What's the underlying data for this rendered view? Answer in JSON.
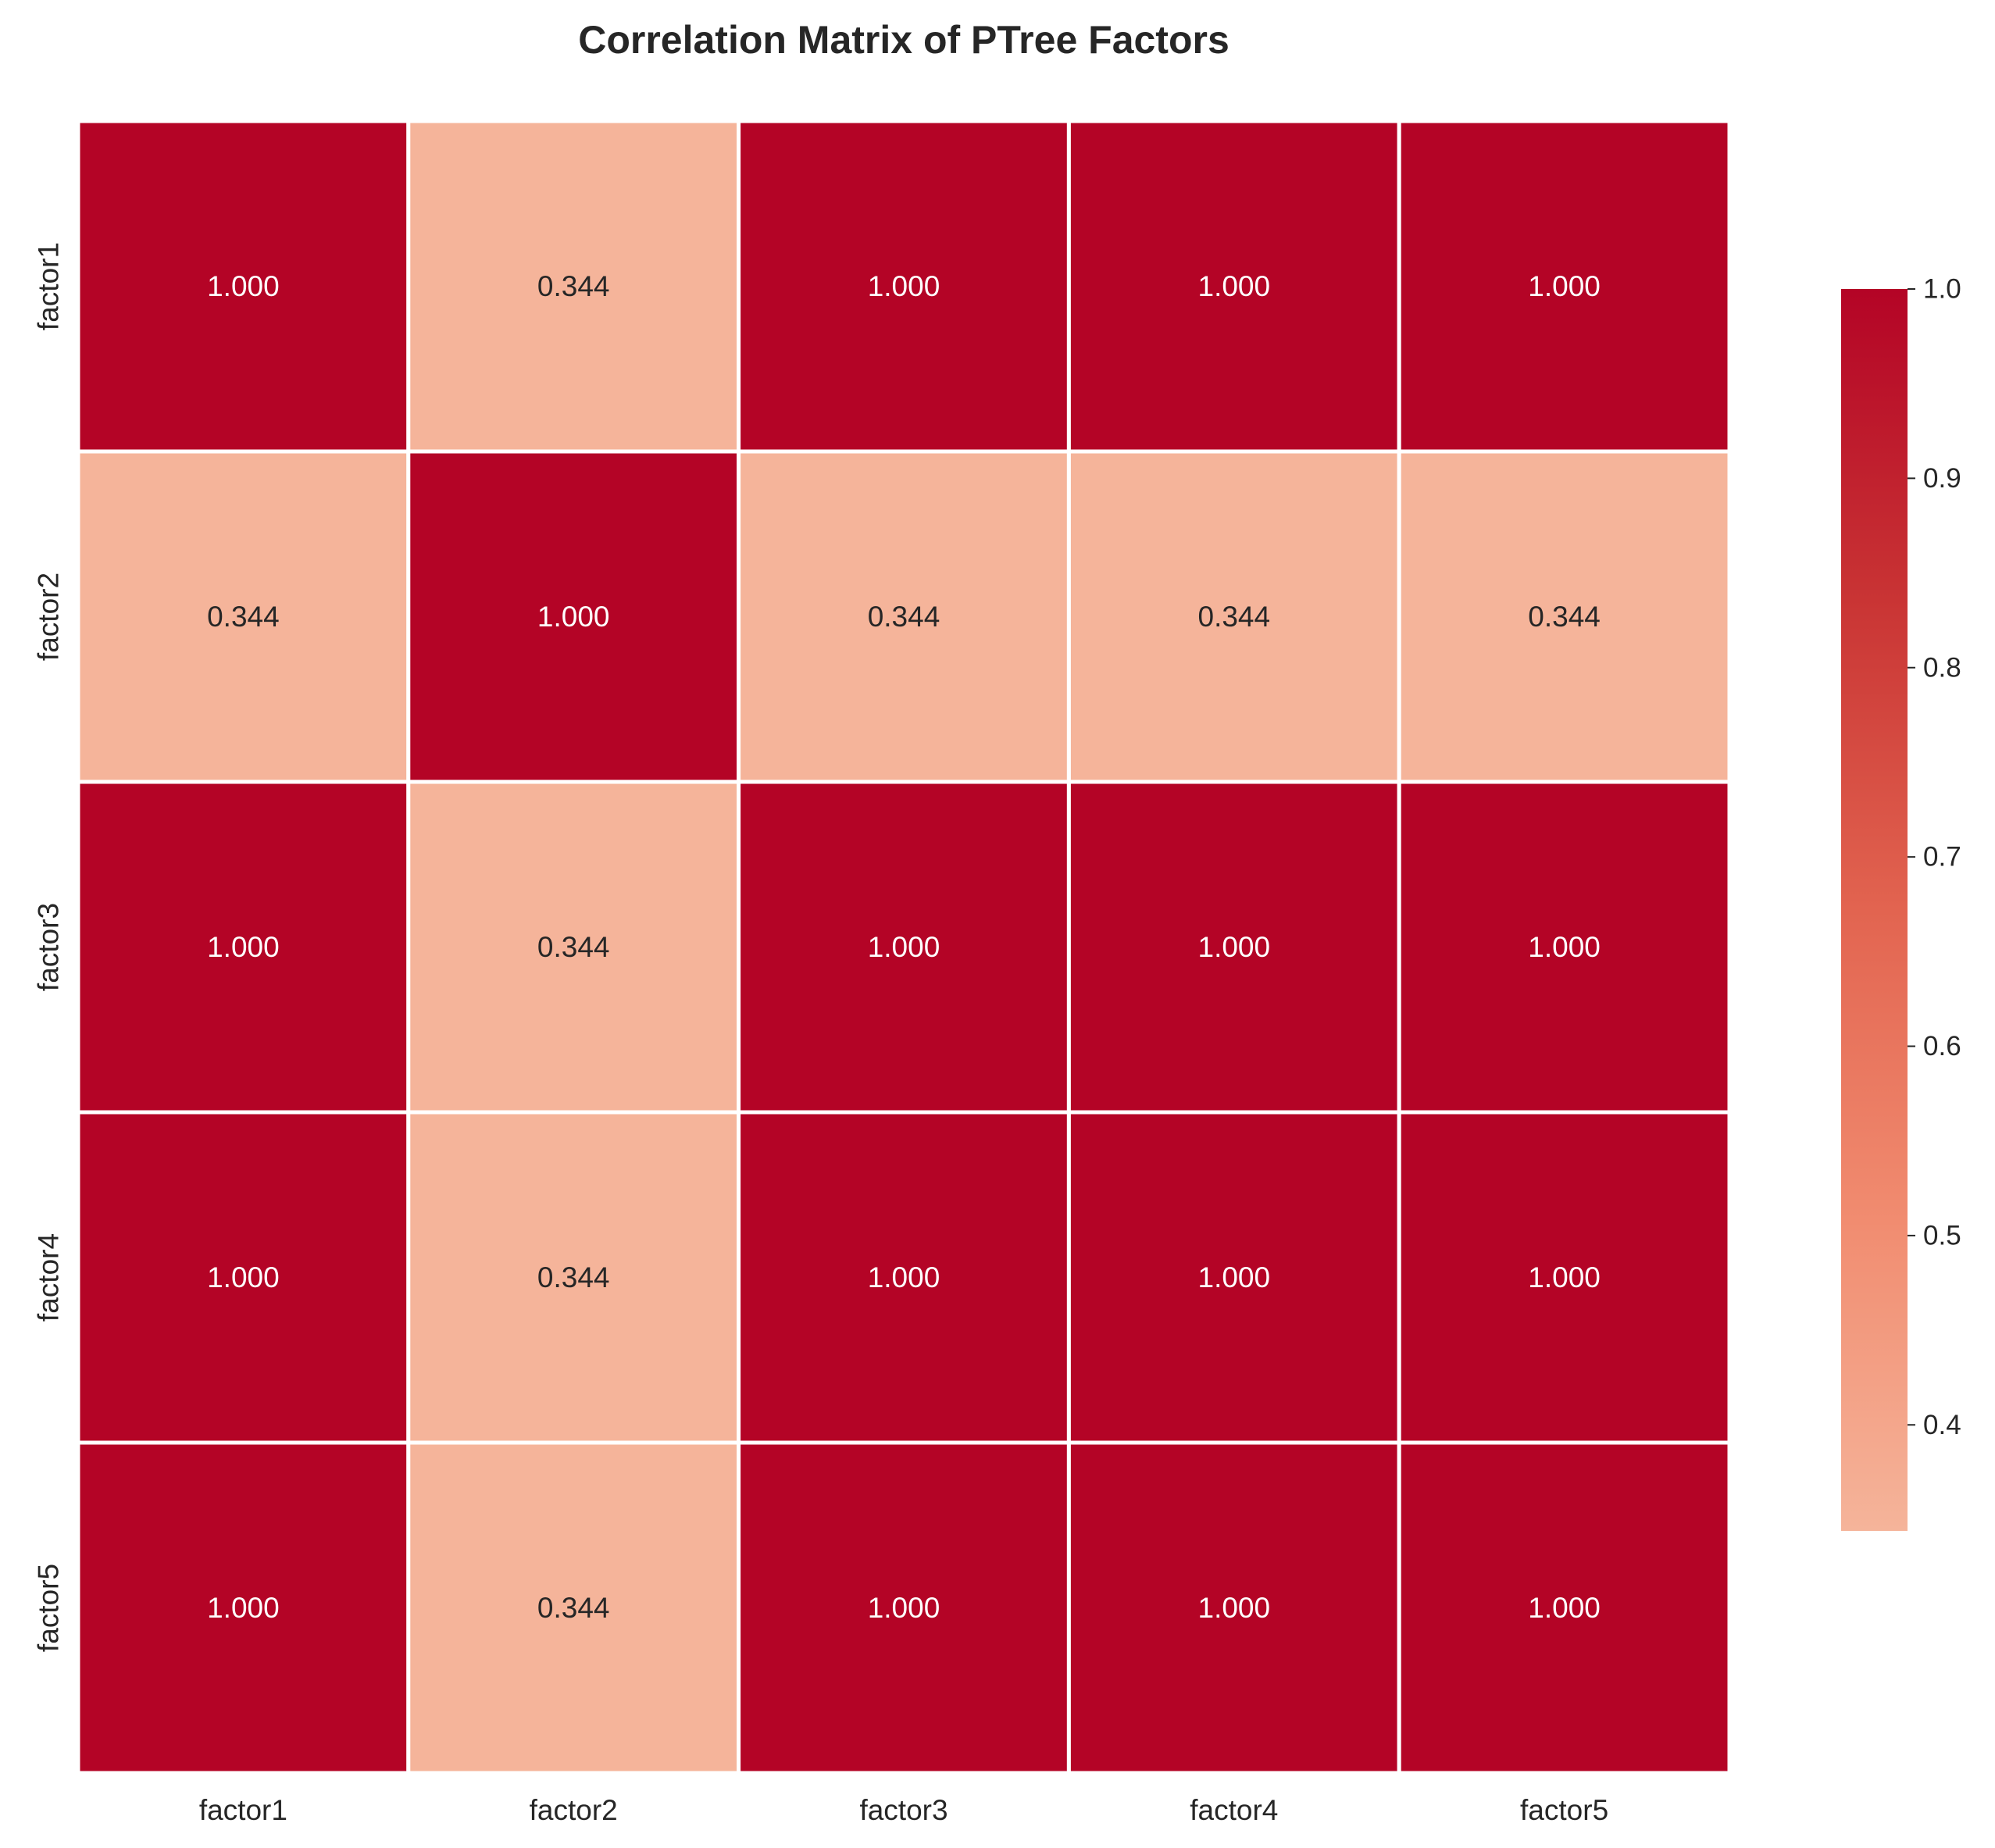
{
  "chart_data": {
    "type": "heatmap",
    "title": "Correlation Matrix of PTree Factors",
    "xlabel": "",
    "ylabel": "",
    "x_categories": [
      "factor1",
      "factor2",
      "factor3",
      "factor4",
      "factor5"
    ],
    "y_categories": [
      "factor1",
      "factor2",
      "factor3",
      "factor4",
      "factor5"
    ],
    "values": [
      [
        1.0,
        0.344,
        1.0,
        1.0,
        1.0
      ],
      [
        0.344,
        1.0,
        0.344,
        0.344,
        0.344
      ],
      [
        1.0,
        0.344,
        1.0,
        1.0,
        1.0
      ],
      [
        1.0,
        0.344,
        1.0,
        1.0,
        1.0
      ],
      [
        1.0,
        0.344,
        1.0,
        1.0,
        1.0
      ]
    ],
    "cell_labels": [
      [
        "1.000",
        "0.344",
        "1.000",
        "1.000",
        "1.000"
      ],
      [
        "0.344",
        "1.000",
        "0.344",
        "0.344",
        "0.344"
      ],
      [
        "1.000",
        "0.344",
        "1.000",
        "1.000",
        "1.000"
      ],
      [
        "1.000",
        "0.344",
        "1.000",
        "1.000",
        "1.000"
      ],
      [
        "1.000",
        "0.344",
        "1.000",
        "1.000",
        "1.000"
      ]
    ],
    "colorbar": {
      "range": [
        0.344,
        1.0
      ],
      "ticks": [
        0.4,
        0.5,
        0.6,
        0.7,
        0.8,
        0.9,
        1.0
      ],
      "tick_labels": [
        "0.4",
        "0.5",
        "0.6",
        "0.7",
        "0.8",
        "0.9",
        "1.0"
      ],
      "placement": "right"
    },
    "colormap": "coolwarm (upper half)",
    "colors": {
      "high": "#b40426",
      "low": "#f5b49a",
      "dark_text": "#262626",
      "light_text": "#ffffff",
      "cell_border": "#ffffff"
    },
    "grid": false
  }
}
